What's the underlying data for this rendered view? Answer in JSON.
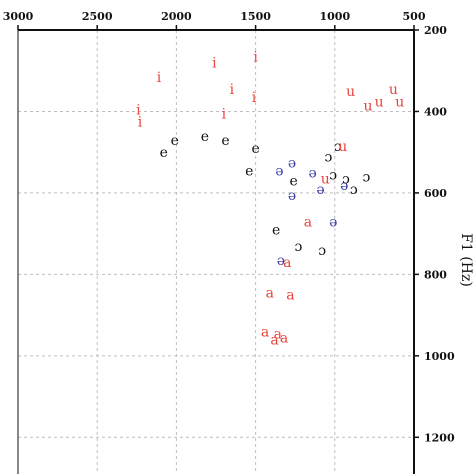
{
  "chart_data": {
    "type": "scatter",
    "title": "",
    "xlabel": "",
    "ylabel": "F1 (Hz)",
    "xlim": [
      3000,
      500
    ],
    "ylim": [
      200,
      1300
    ],
    "x_reversed": true,
    "y_reversed": true,
    "x_axis_position": "top",
    "y_axis_position": "right",
    "xticks": [
      3000,
      2500,
      2000,
      1500,
      1000,
      500
    ],
    "yticks": [
      200,
      400,
      600,
      800,
      1000,
      1200
    ],
    "grid": true,
    "colors": {
      "red": "#e8453c",
      "black": "#111111",
      "blue": "#3a3aa8"
    },
    "points": [
      {
        "x": 2110,
        "y": 315,
        "label": "i",
        "color": "red"
      },
      {
        "x": 1760,
        "y": 280,
        "label": "i",
        "color": "red"
      },
      {
        "x": 1500,
        "y": 265,
        "label": "i",
        "color": "red"
      },
      {
        "x": 1650,
        "y": 345,
        "label": "i",
        "color": "red"
      },
      {
        "x": 1510,
        "y": 365,
        "label": "i",
        "color": "red"
      },
      {
        "x": 1700,
        "y": 405,
        "label": "i",
        "color": "red"
      },
      {
        "x": 2240,
        "y": 395,
        "label": "i",
        "color": "red"
      },
      {
        "x": 2230,
        "y": 425,
        "label": "i",
        "color": "red"
      },
      {
        "x": 900,
        "y": 350,
        "label": "u",
        "color": "red"
      },
      {
        "x": 790,
        "y": 385,
        "label": "u",
        "color": "red"
      },
      {
        "x": 720,
        "y": 375,
        "label": "u",
        "color": "red"
      },
      {
        "x": 630,
        "y": 345,
        "label": "u",
        "color": "red"
      },
      {
        "x": 590,
        "y": 375,
        "label": "u",
        "color": "red"
      },
      {
        "x": 2080,
        "y": 500,
        "label": "e",
        "color": "black"
      },
      {
        "x": 2010,
        "y": 470,
        "label": "e",
        "color": "black"
      },
      {
        "x": 1820,
        "y": 460,
        "label": "e",
        "color": "black"
      },
      {
        "x": 1690,
        "y": 470,
        "label": "e",
        "color": "black"
      },
      {
        "x": 1500,
        "y": 490,
        "label": "e",
        "color": "black"
      },
      {
        "x": 1540,
        "y": 545,
        "label": "e",
        "color": "black"
      },
      {
        "x": 1260,
        "y": 570,
        "label": "e",
        "color": "black"
      },
      {
        "x": 1370,
        "y": 690,
        "label": "e",
        "color": "black"
      },
      {
        "x": 1350,
        "y": 545,
        "label": "ə",
        "color": "blue"
      },
      {
        "x": 1270,
        "y": 525,
        "label": "ə",
        "color": "blue"
      },
      {
        "x": 1270,
        "y": 605,
        "label": "ə",
        "color": "blue"
      },
      {
        "x": 1140,
        "y": 550,
        "label": "ə",
        "color": "blue"
      },
      {
        "x": 1090,
        "y": 590,
        "label": "ə",
        "color": "blue"
      },
      {
        "x": 940,
        "y": 580,
        "label": "ə",
        "color": "blue"
      },
      {
        "x": 1010,
        "y": 670,
        "label": "ə",
        "color": "blue"
      },
      {
        "x": 1340,
        "y": 765,
        "label": "ə",
        "color": "blue"
      },
      {
        "x": 980,
        "y": 485,
        "label": "ɔ",
        "color": "black"
      },
      {
        "x": 1040,
        "y": 510,
        "label": "ɔ",
        "color": "black"
      },
      {
        "x": 1010,
        "y": 555,
        "label": "ɔ",
        "color": "black"
      },
      {
        "x": 930,
        "y": 565,
        "label": "ɔ",
        "color": "black"
      },
      {
        "x": 880,
        "y": 590,
        "label": "ɔ",
        "color": "black"
      },
      {
        "x": 800,
        "y": 560,
        "label": "ɔ",
        "color": "black"
      },
      {
        "x": 1230,
        "y": 730,
        "label": "ɔ",
        "color": "black"
      },
      {
        "x": 1080,
        "y": 740,
        "label": "ɔ",
        "color": "black"
      },
      {
        "x": 950,
        "y": 485,
        "label": "u",
        "color": "red"
      },
      {
        "x": 1060,
        "y": 565,
        "label": "u",
        "color": "red"
      },
      {
        "x": 1170,
        "y": 670,
        "label": "a",
        "color": "red"
      },
      {
        "x": 1300,
        "y": 770,
        "label": "a",
        "color": "red"
      },
      {
        "x": 1410,
        "y": 845,
        "label": "a",
        "color": "red"
      },
      {
        "x": 1280,
        "y": 850,
        "label": "a",
        "color": "red"
      },
      {
        "x": 1440,
        "y": 940,
        "label": "a",
        "color": "red"
      },
      {
        "x": 1380,
        "y": 960,
        "label": "a",
        "color": "red"
      },
      {
        "x": 1360,
        "y": 945,
        "label": "a",
        "color": "red"
      },
      {
        "x": 1320,
        "y": 955,
        "label": "a",
        "color": "red"
      }
    ]
  }
}
